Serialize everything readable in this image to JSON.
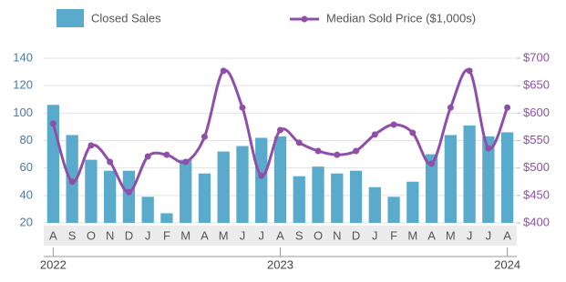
{
  "chart_data": {
    "type": "bar-line",
    "categories": [
      "A",
      "S",
      "O",
      "N",
      "D",
      "J",
      "F",
      "M",
      "A",
      "M",
      "J",
      "J",
      "A",
      "S",
      "O",
      "N",
      "D",
      "J",
      "F",
      "M",
      "A",
      "M",
      "J",
      "J",
      "A"
    ],
    "years": [
      "2022",
      "2023",
      "2024"
    ],
    "series": [
      {
        "name": "Closed Sales",
        "type": "bar",
        "color": "#5aaacb",
        "values": [
          106,
          84,
          66,
          58,
          58,
          39,
          27,
          66,
          56,
          72,
          76,
          82,
          83,
          54,
          61,
          56,
          58,
          46,
          39,
          50,
          70,
          84,
          91,
          83,
          86
        ]
      },
      {
        "name": "Median Sold Price ($1,000s)",
        "type": "line",
        "axis": "y2",
        "color": "#8f4fa9",
        "values": [
          581,
          475,
          541,
          511,
          456,
          521,
          524,
          511,
          557,
          677,
          610,
          486,
          569,
          546,
          531,
          524,
          531,
          561,
          579,
          564,
          508,
          610,
          677,
          536,
          610
        ]
      }
    ],
    "ylim": [
      20,
      140
    ],
    "yticks": [
      20,
      40,
      60,
      80,
      100,
      120,
      140
    ],
    "y2lim": [
      400,
      700
    ],
    "y2ticks": [
      {
        "value": 400,
        "label": "$400"
      },
      {
        "value": 450,
        "label": "$450"
      },
      {
        "value": 500,
        "label": "$500"
      },
      {
        "value": 550,
        "label": "$550"
      },
      {
        "value": 600,
        "label": "$600"
      },
      {
        "value": 650,
        "label": "$650"
      },
      {
        "value": 700,
        "label": "$700"
      }
    ],
    "grid": true
  }
}
